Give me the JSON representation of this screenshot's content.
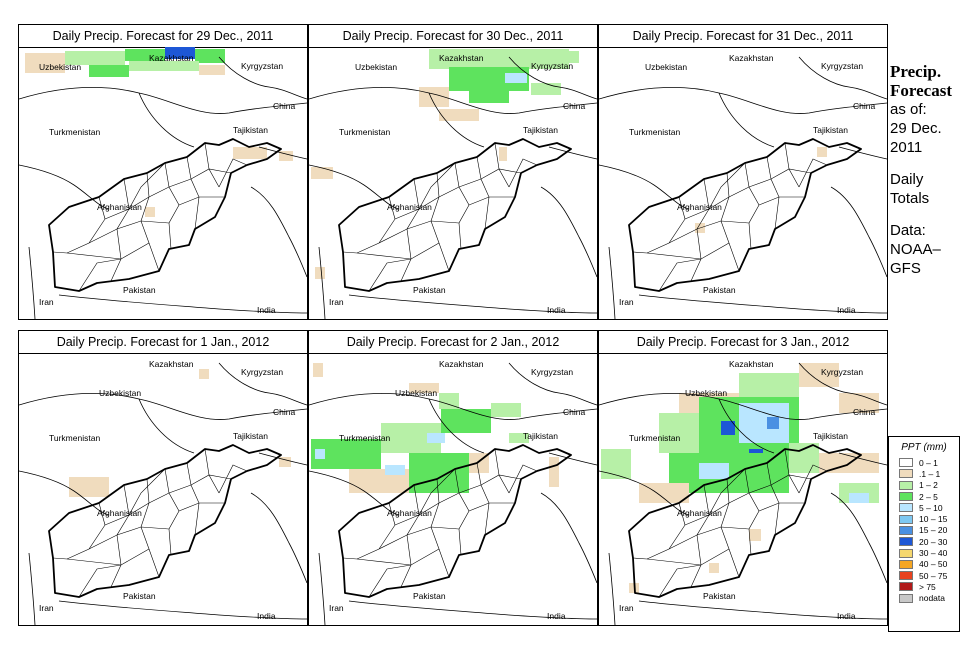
{
  "panels": [
    {
      "title": "Daily Precip. Forecast for  29 Dec., 2011"
    },
    {
      "title": "Daily Precip. Forecast for  30 Dec., 2011"
    },
    {
      "title": "Daily Precip. Forecast for  31 Dec., 2011"
    },
    {
      "title": "Daily Precip. Forecast for  1 Jan., 2012"
    },
    {
      "title": "Daily Precip. Forecast for  2 Jan., 2012"
    },
    {
      "title": "Daily Precip. Forecast for  3 Jan., 2012"
    }
  ],
  "countries": {
    "kazakhstan": "Kazakhstan",
    "kyrgyzstan": "Kyrgyzstan",
    "uzbekistan": "Uzbekistan",
    "china": "China",
    "turkmenistan": "Turkmenistan",
    "tajikistan": "Tajikistan",
    "afghanistan": "Afghanistan",
    "pakistan": "Pakistan",
    "iran": "Iran",
    "india": "India"
  },
  "sidebar": {
    "title_line1": "Precip.",
    "title_line2": "Forecast",
    "asof": "as of:",
    "date_line1": "29 Dec.",
    "date_line2": "2011",
    "totals_line1": "Daily",
    "totals_line2": "Totals",
    "data_line1": "Data:",
    "data_line2": "NOAA–",
    "data_line3": "GFS"
  },
  "legend": {
    "title": "PPT (mm)",
    "items": [
      {
        "label": "0 – 1",
        "color": "#ffffff"
      },
      {
        "label": ".1 – 1",
        "color": "#f0dcbe"
      },
      {
        "label": "1 – 2",
        "color": "#b7f0a7"
      },
      {
        "label": "2 – 5",
        "color": "#5ee35e"
      },
      {
        "label": "5 – 10",
        "color": "#b9e6ff"
      },
      {
        "label": "10 – 15",
        "color": "#7ec8f2"
      },
      {
        "label": "15 – 20",
        "color": "#4a90e2"
      },
      {
        "label": "20 – 30",
        "color": "#1d57d6"
      },
      {
        "label": "30 – 40",
        "color": "#f5d76e"
      },
      {
        "label": "40 – 50",
        "color": "#f5a623"
      },
      {
        "label": "50 – 75",
        "color": "#e8421f"
      },
      {
        "label": "> 75",
        "color": "#b11a1a"
      },
      {
        "label": "nodata",
        "color": "#c8c8c8"
      }
    ]
  }
}
